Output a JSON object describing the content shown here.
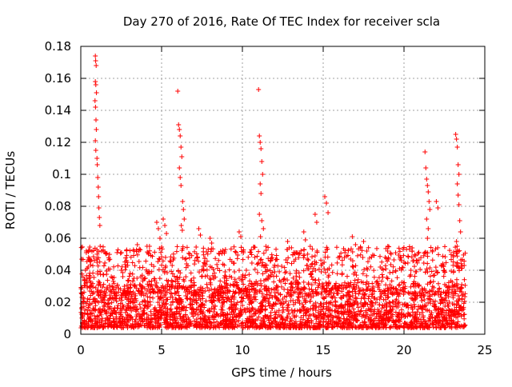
{
  "chart_data": {
    "type": "scatter",
    "title": "Day 270 of 2016, Rate Of TEC Index for receiver scla",
    "xlabel": "GPS time / hours",
    "ylabel": "ROTI / TECUs",
    "xlim": [
      0,
      25
    ],
    "ylim": [
      0,
      0.18
    ],
    "xticks": [
      0,
      5,
      10,
      15,
      20,
      25
    ],
    "yticks": [
      0,
      0.02,
      0.04,
      0.06,
      0.08,
      0.1,
      0.12,
      0.14,
      0.16,
      0.18
    ],
    "xtick_labels": [
      "0",
      "5",
      "10",
      "15",
      "20",
      "25"
    ],
    "ytick_labels": [
      "0",
      "0.02",
      "0.04",
      "0.06",
      "0.08",
      "0.1",
      "0.12",
      "0.14",
      "0.16",
      "0.18"
    ],
    "grid": true,
    "marker": "+",
    "color": "#ff0000",
    "series": [
      {
        "name": "ROTI",
        "x": [
          0.9,
          0.92,
          0.95,
          0.9,
          0.93,
          0.97,
          0.88,
          0.91,
          0.94,
          0.96,
          0.9,
          0.93,
          1.0,
          1.02,
          1.05,
          1.08,
          1.1,
          1.12,
          1.15,
          1.18,
          1.2,
          1.0,
          1.05,
          1.1,
          6.0,
          6.05,
          6.1,
          6.15,
          6.2,
          6.25,
          6.1,
          6.15,
          6.2,
          6.3,
          6.35,
          6.4,
          6.22,
          6.28,
          11.0,
          11.05,
          11.1,
          11.15,
          11.2,
          11.25,
          11.1,
          11.15,
          11.05,
          11.2,
          11.3,
          11.12,
          21.3,
          21.35,
          21.4,
          21.45,
          21.5,
          21.55,
          21.6,
          21.4,
          21.5,
          21.45,
          22.0,
          22.1,
          23.2,
          23.25,
          23.3,
          23.35,
          23.4,
          23.3,
          23.35,
          23.4,
          23.45,
          23.5,
          23.25,
          23.3,
          15.1,
          15.2,
          15.3,
          14.5,
          14.6,
          13.8,
          13.9,
          4.7,
          4.8,
          4.9,
          5.1,
          5.2,
          5.3,
          4.1,
          4.2,
          7.3,
          7.4,
          8.0,
          8.1,
          9.8,
          9.9,
          12.8,
          12.9,
          16.8,
          17.0,
          17.5,
          17.7,
          19.0,
          19.2,
          19.8,
          20.0,
          20.5,
          20.6,
          2.5,
          2.6,
          3.5,
          3.6,
          0.3,
          0.4,
          22.4,
          22.5,
          2.0,
          3.0,
          5.5,
          6.5,
          7.0,
          8.5,
          9.0,
          9.5,
          10.0,
          10.5,
          11.5,
          12.0,
          12.5,
          13.0,
          13.5,
          14.0,
          15.5,
          16.0,
          16.5,
          17.2,
          18.0,
          18.5,
          19.5,
          20.2,
          21.0,
          22.8,
          23.0,
          23.6
        ],
        "y": [
          0.174,
          0.171,
          0.168,
          0.158,
          0.156,
          0.151,
          0.146,
          0.142,
          0.134,
          0.128,
          0.121,
          0.115,
          0.11,
          0.106,
          0.098,
          0.092,
          0.086,
          0.079,
          0.073,
          0.068,
          0.055,
          0.045,
          0.039,
          0.033,
          0.152,
          0.131,
          0.128,
          0.124,
          0.117,
          0.111,
          0.104,
          0.098,
          0.093,
          0.083,
          0.078,
          0.072,
          0.068,
          0.065,
          0.153,
          0.124,
          0.12,
          0.116,
          0.108,
          0.1,
          0.094,
          0.088,
          0.075,
          0.071,
          0.066,
          0.061,
          0.114,
          0.104,
          0.097,
          0.093,
          0.089,
          0.083,
          0.078,
          0.072,
          0.066,
          0.06,
          0.083,
          0.079,
          0.125,
          0.122,
          0.117,
          0.106,
          0.1,
          0.094,
          0.087,
          0.081,
          0.071,
          0.064,
          0.058,
          0.052,
          0.086,
          0.082,
          0.076,
          0.075,
          0.07,
          0.064,
          0.059,
          0.07,
          0.066,
          0.06,
          0.072,
          0.068,
          0.063,
          0.055,
          0.05,
          0.066,
          0.062,
          0.06,
          0.057,
          0.064,
          0.061,
          0.058,
          0.054,
          0.061,
          0.056,
          0.058,
          0.052,
          0.055,
          0.05,
          0.048,
          0.045,
          0.052,
          0.046,
          0.04,
          0.036,
          0.056,
          0.052,
          0.032,
          0.03,
          0.044,
          0.04,
          0.022,
          0.025,
          0.028,
          0.024,
          0.021,
          0.026,
          0.023,
          0.019,
          0.018,
          0.02,
          0.027,
          0.024,
          0.022,
          0.021,
          0.023,
          0.025,
          0.028,
          0.03,
          0.026,
          0.029,
          0.02,
          0.022,
          0.021,
          0.018,
          0.024,
          0.02,
          0.019,
          0.015
        ]
      }
    ],
    "dense_band": {
      "description": "dense scatter of low ROTI values across the whole day",
      "x_range": [
        0,
        23.8
      ],
      "y_range": [
        0.004,
        0.035
      ]
    }
  }
}
